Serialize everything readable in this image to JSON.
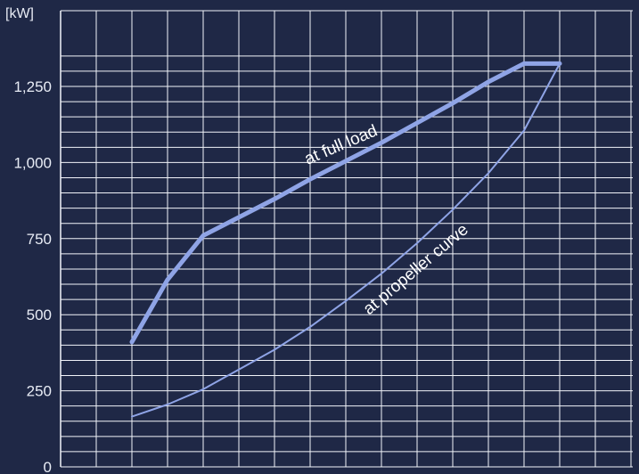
{
  "chart_data": {
    "type": "line",
    "title": "",
    "xlabel": "",
    "ylabel": "[kW]",
    "ylim": [
      0,
      1350
    ],
    "y_ticks": [
      0,
      250,
      500,
      750,
      1000,
      1250
    ],
    "y_tick_labels": [
      "0",
      "250",
      "500",
      "750",
      "1,000",
      "1,250"
    ],
    "grid": true,
    "x_grid_count": 16,
    "x": [
      2,
      3,
      4,
      5,
      6,
      7,
      8,
      9,
      10,
      11,
      12,
      13,
      14
    ],
    "series": [
      {
        "name": "at full load",
        "values": [
          410,
          615,
          760,
          820,
          880,
          945,
          1005,
          1065,
          1130,
          1195,
          1265,
          1325,
          1325
        ],
        "color": "#8fa4e6"
      },
      {
        "name": "at propeller curve",
        "values": [
          165,
          205,
          255,
          320,
          385,
          460,
          545,
          635,
          735,
          845,
          965,
          1105,
          1325
        ],
        "color": "#8fa4e6"
      }
    ],
    "annotations": [
      "at full load",
      "at propeller curve"
    ]
  },
  "colors": {
    "background": "#1f2846",
    "grid": "#f2f4fa",
    "line": "#8fa4e6",
    "text": "#e8ecf5"
  }
}
